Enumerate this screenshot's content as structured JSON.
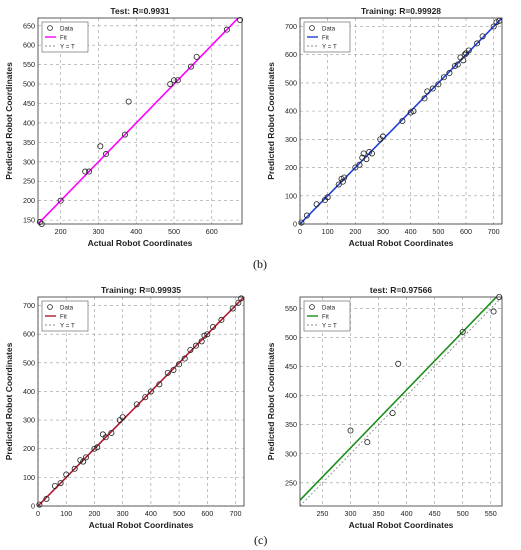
{
  "captions": {
    "b": "(b)",
    "c": "(c)"
  },
  "chart_data": [
    {
      "type": "scatter",
      "title": "Test: R=0.9931",
      "xlabel": "Actual Robot Coordinates",
      "ylabel": "Predicted Robot Coordinates",
      "xlim": [
        140,
        680
      ],
      "ylim": [
        140,
        670
      ],
      "xticks": [
        200,
        300,
        400,
        500,
        600
      ],
      "yticks": [
        150,
        200,
        250,
        300,
        350,
        400,
        450,
        500,
        550,
        600,
        650
      ],
      "grid": true,
      "legend": {
        "position": "top-left",
        "entries": [
          "Data",
          "Fit",
          "Y = T"
        ]
      },
      "fit_color": "#ff00ff",
      "fit": {
        "slope": 1.0,
        "intercept": 0
      },
      "identity": true,
      "points": [
        [
          145,
          145
        ],
        [
          150,
          140
        ],
        [
          200,
          200
        ],
        [
          265,
          275
        ],
        [
          275,
          275
        ],
        [
          305,
          340
        ],
        [
          320,
          320
        ],
        [
          370,
          370
        ],
        [
          380,
          455
        ],
        [
          490,
          500
        ],
        [
          500,
          510
        ],
        [
          510,
          510
        ],
        [
          545,
          545
        ],
        [
          560,
          570
        ],
        [
          640,
          640
        ],
        [
          675,
          665
        ]
      ]
    },
    {
      "type": "scatter",
      "title": "Training: R=0.99928",
      "xlabel": "Actual Robot Coordinates",
      "ylabel": "Predicted Robot Coordinates",
      "xlim": [
        0,
        730
      ],
      "ylim": [
        0,
        730
      ],
      "xticks": [
        0,
        100,
        200,
        300,
        400,
        500,
        600,
        700
      ],
      "yticks": [
        0,
        100,
        200,
        300,
        400,
        500,
        600,
        700
      ],
      "grid": true,
      "legend": {
        "position": "top-left",
        "entries": [
          "Data",
          "Fit",
          "Y = T"
        ]
      },
      "fit_color": "#1f3fd6",
      "fit": {
        "slope": 1.0,
        "intercept": 0
      },
      "identity": true,
      "points": [
        [
          5,
          5
        ],
        [
          25,
          30
        ],
        [
          60,
          70
        ],
        [
          90,
          85
        ],
        [
          100,
          95
        ],
        [
          140,
          140
        ],
        [
          150,
          160
        ],
        [
          155,
          150
        ],
        [
          160,
          165
        ],
        [
          200,
          200
        ],
        [
          215,
          210
        ],
        [
          225,
          235
        ],
        [
          230,
          250
        ],
        [
          240,
          230
        ],
        [
          250,
          255
        ],
        [
          260,
          250
        ],
        [
          290,
          300
        ],
        [
          300,
          310
        ],
        [
          370,
          365
        ],
        [
          400,
          395
        ],
        [
          410,
          400
        ],
        [
          450,
          445
        ],
        [
          460,
          470
        ],
        [
          480,
          480
        ],
        [
          500,
          495
        ],
        [
          520,
          520
        ],
        [
          540,
          535
        ],
        [
          560,
          560
        ],
        [
          570,
          565
        ],
        [
          580,
          590
        ],
        [
          590,
          580
        ],
        [
          595,
          600
        ],
        [
          600,
          605
        ],
        [
          610,
          615
        ],
        [
          640,
          640
        ],
        [
          660,
          665
        ],
        [
          700,
          700
        ],
        [
          710,
          715
        ],
        [
          720,
          720
        ]
      ]
    },
    {
      "type": "scatter",
      "title": "Training: R=0.99935",
      "xlabel": "Actual Robot Coordinates",
      "ylabel": "Predicted Robot Coordinates",
      "xlim": [
        0,
        730
      ],
      "ylim": [
        0,
        730
      ],
      "xticks": [
        0,
        100,
        200,
        300,
        400,
        500,
        600,
        700
      ],
      "yticks": [
        0,
        100,
        200,
        300,
        400,
        500,
        600,
        700
      ],
      "grid": true,
      "legend": {
        "position": "top-left",
        "entries": [
          "Data",
          "Fit",
          "Y = T"
        ]
      },
      "fit_color": "#b01c2e",
      "fit": {
        "slope": 1.0,
        "intercept": 0
      },
      "identity": true,
      "points": [
        [
          5,
          5
        ],
        [
          30,
          25
        ],
        [
          60,
          70
        ],
        [
          80,
          80
        ],
        [
          100,
          110
        ],
        [
          130,
          130
        ],
        [
          150,
          160
        ],
        [
          160,
          155
        ],
        [
          170,
          170
        ],
        [
          200,
          200
        ],
        [
          210,
          205
        ],
        [
          230,
          250
        ],
        [
          240,
          240
        ],
        [
          260,
          255
        ],
        [
          290,
          300
        ],
        [
          300,
          310
        ],
        [
          350,
          355
        ],
        [
          380,
          380
        ],
        [
          400,
          400
        ],
        [
          430,
          425
        ],
        [
          460,
          465
        ],
        [
          480,
          475
        ],
        [
          500,
          495
        ],
        [
          520,
          515
        ],
        [
          540,
          545
        ],
        [
          560,
          560
        ],
        [
          580,
          575
        ],
        [
          590,
          595
        ],
        [
          600,
          600
        ],
        [
          620,
          625
        ],
        [
          650,
          650
        ],
        [
          690,
          690
        ],
        [
          710,
          710
        ],
        [
          720,
          725
        ]
      ]
    },
    {
      "type": "scatter",
      "title": "test: R=0.97566",
      "xlabel": "Actual Robot Coordinates",
      "ylabel": "Predicted Robot Coordinates",
      "xlim": [
        210,
        570
      ],
      "ylim": [
        210,
        570
      ],
      "xticks": [
        250,
        300,
        350,
        400,
        450,
        500,
        550
      ],
      "yticks": [
        250,
        300,
        350,
        400,
        450,
        500,
        550
      ],
      "grid": true,
      "legend": {
        "position": "top-left",
        "entries": [
          "Data",
          "Fit",
          "Y = T"
        ]
      },
      "fit_color": "#1a8f1a",
      "fit": {
        "slope": 1.0,
        "intercept": 10
      },
      "identity": true,
      "points": [
        [
          300,
          340
        ],
        [
          330,
          320
        ],
        [
          375,
          370
        ],
        [
          385,
          455
        ],
        [
          500,
          510
        ],
        [
          555,
          545
        ],
        [
          565,
          570
        ]
      ]
    }
  ]
}
